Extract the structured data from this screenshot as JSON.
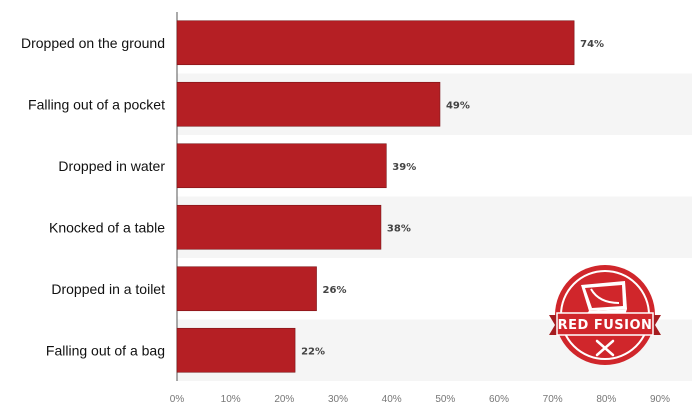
{
  "chart_data": {
    "type": "bar",
    "orientation": "horizontal",
    "categories": [
      "Dropped on the ground",
      "Falling out of a pocket",
      "Dropped in water",
      "Knocked of a table",
      "Dropped in a toilet",
      "Falling out of a bag"
    ],
    "values": [
      74,
      49,
      39,
      38,
      26,
      22
    ],
    "value_labels": [
      "74%",
      "49%",
      "39%",
      "38%",
      "26%",
      "22%"
    ],
    "x_ticks": [
      "0%",
      "10%",
      "20%",
      "30%",
      "40%",
      "50%",
      "60%",
      "70%",
      "80%",
      "90%"
    ],
    "xlim": [
      0,
      90
    ],
    "title": "",
    "xlabel": "",
    "ylabel": "",
    "grid": "alternating row bands",
    "bar_color": "#b51f24",
    "band_color": "#f5f5f5"
  },
  "logo": {
    "text": "RED FUSION",
    "icon": "monitor-and-tools-icon",
    "color": "#d0262b"
  }
}
